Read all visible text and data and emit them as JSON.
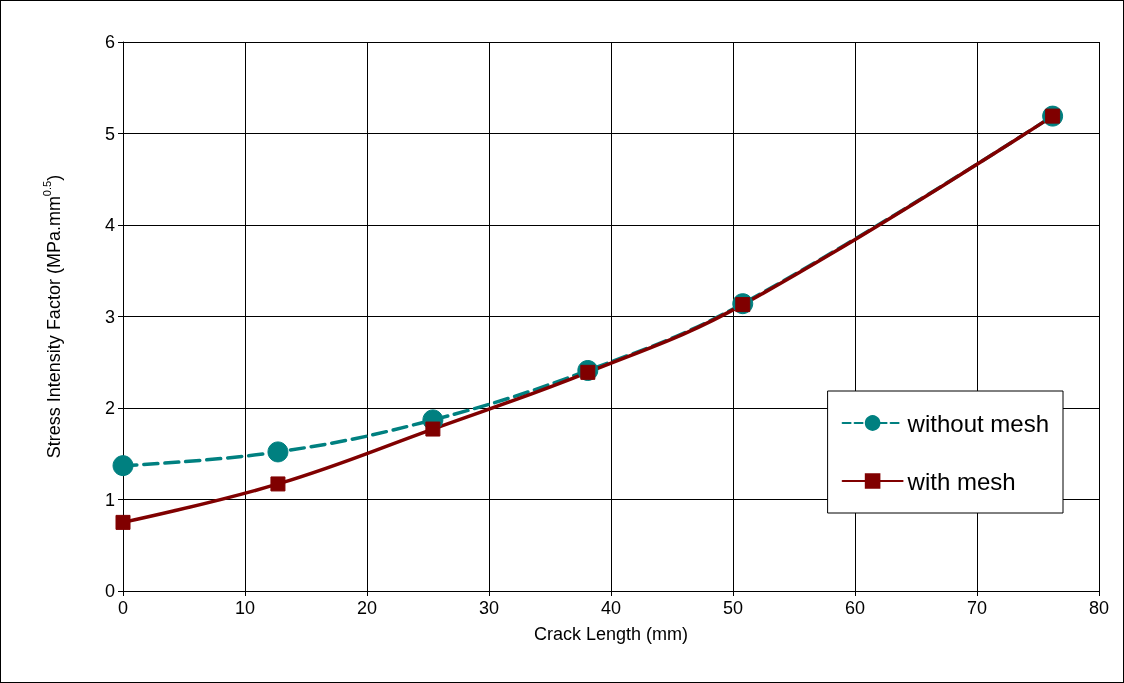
{
  "chart_data": {
    "type": "line",
    "xlabel": "Crack Length (mm)",
    "ylabel": "Stress Intensity Factor (MPa.mm$^{0.5}$)",
    "x": [
      0,
      12.7,
      25.4,
      38.1,
      50.8,
      76.2
    ],
    "series": [
      {
        "name": "without mesh",
        "color": "#008080",
        "values": [
          1.37,
          1.52,
          1.87,
          2.41,
          3.14,
          5.19
        ],
        "marker": "circle",
        "line_style": "dashed"
      },
      {
        "name": "with mesh",
        "color": "#800000",
        "values": [
          0.75,
          1.17,
          1.77,
          2.39,
          3.13,
          5.19
        ],
        "marker": "square",
        "line_style": "solid"
      }
    ],
    "xlim": [
      0,
      80
    ],
    "xticks": [
      0,
      10,
      20,
      30,
      40,
      50,
      60,
      70,
      80
    ],
    "ylim": [
      0,
      6
    ],
    "yticks": [
      0,
      1,
      2,
      3,
      4,
      5,
      6
    ],
    "grid": true,
    "legend": "right"
  }
}
